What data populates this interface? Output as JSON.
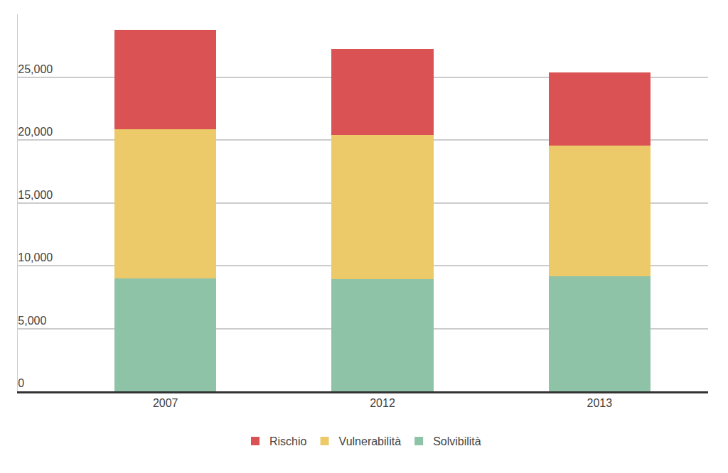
{
  "chart_data": {
    "type": "bar",
    "stacked": true,
    "grid": true,
    "legend": "bottom",
    "categories": [
      "2007",
      "2012",
      "2013"
    ],
    "series": [
      {
        "name": "Solvibilità",
        "color": "#8ec3a7",
        "values": [
          9000,
          8950,
          9150
        ]
      },
      {
        "name": "Vulnerabilità",
        "color": "#ecc969",
        "values": [
          11850,
          11450,
          10400
        ]
      },
      {
        "name": "Rischio",
        "color": "#da5254",
        "values": [
          7900,
          6850,
          5800
        ]
      }
    ],
    "ylim": [
      0,
      30000
    ],
    "yticks": [
      0,
      {
        "value": 5000,
        "label": "5,000"
      },
      {
        "value": 10000,
        "label": "10,000"
      },
      {
        "value": 15000,
        "label": "15,000"
      },
      {
        "value": 20000,
        "label": "20,000"
      },
      {
        "value": 25000,
        "label": "25,000"
      }
    ]
  }
}
